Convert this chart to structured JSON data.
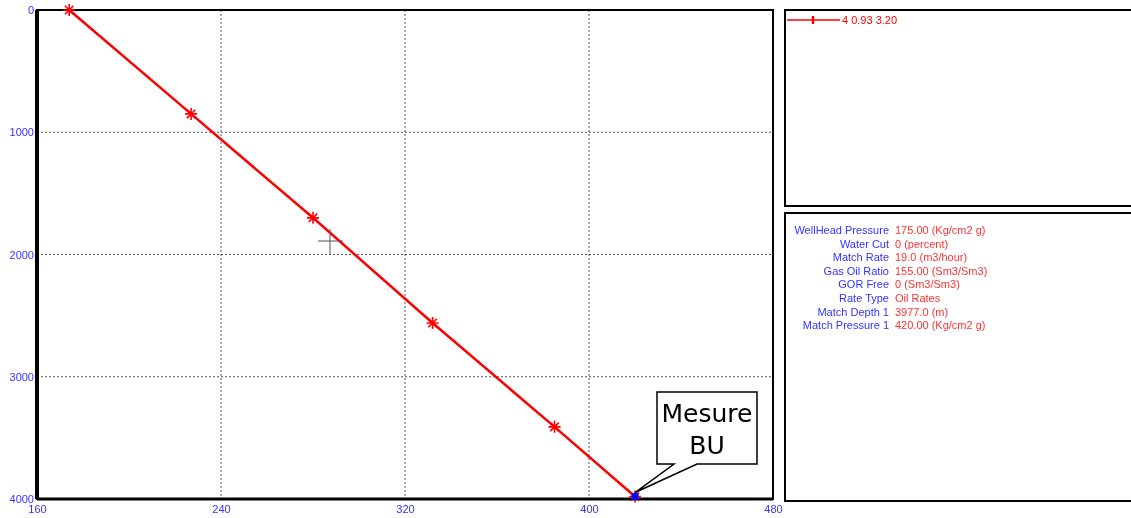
{
  "chart_data": [
    {
      "type": "line",
      "xlim": [
        160,
        480
      ],
      "ylim": [
        4000,
        0
      ],
      "xticks": [
        160,
        240,
        320,
        400,
        480
      ],
      "yticks": [
        0,
        1000,
        2000,
        3000,
        4000
      ],
      "grid": true,
      "legend": "right",
      "marker": "cross",
      "line_style": "solid",
      "x": [
        174,
        227,
        280,
        332,
        385,
        420
      ],
      "series": [
        {
          "name": "4 0.93 3.20",
          "color": "#ff0000",
          "values": [
            0,
            850,
            1700,
            2560,
            3410,
            3980
          ]
        },
        {
          "type": "scatter",
          "color": "#0000ff",
          "marker": "square",
          "x": [
            420
          ],
          "values": [
            3980
          ]
        }
      ],
      "annotations": [
        {
          "text": "Mesure BU",
          "x": 420,
          "y": 3980
        }
      ]
    },
    {
      "type": "other",
      "annotations": [
        "WellHead Pressure",
        "175.00 (Kg/cm2 g)",
        "Water Cut",
        "0 (percent)",
        "Match Rate",
        "19.0 (m3/hour)",
        "Gas Oil Ratio",
        "155.00 (Sm3/Sm3)",
        "GOR Free",
        "0 (Sm3/Sm3)",
        "Rate Type",
        "Oil Rates",
        "Match Depth 1",
        "3977.0 (m)",
        "Match Pressure 1",
        "420.00 (Kg/cm2 g)"
      ]
    }
  ]
}
